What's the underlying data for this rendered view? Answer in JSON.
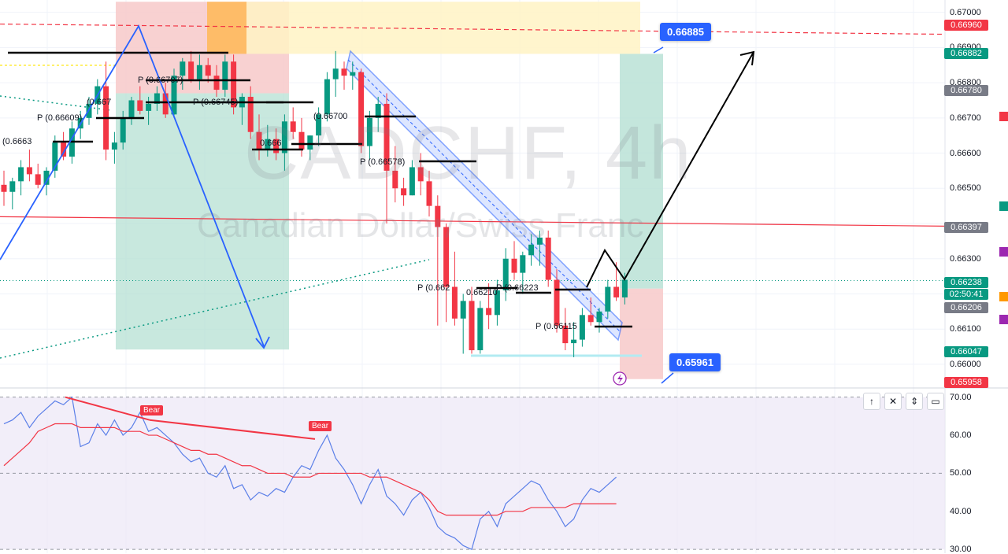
{
  "watermark": {
    "symbol": "CADCHF, 4h",
    "name": "Canadian Dollar/Swiss Franc"
  },
  "callouts": {
    "target": "0.66885",
    "stop": "0.65961"
  },
  "price_axis": {
    "ticks": [
      "0.67000",
      "0.66900",
      "0.66800",
      "0.66700",
      "0.66600",
      "0.66500",
      "0.66300",
      "0.66100",
      "0.66000"
    ],
    "tags": [
      {
        "text": "0.66960",
        "color": "#f23645"
      },
      {
        "text": "0.66882",
        "color": "#089981"
      },
      {
        "text": "0.66780",
        "color": "#787b86"
      },
      {
        "text": "0.66397",
        "color": "#787b86"
      },
      {
        "text": "0.66238",
        "color": "#089981"
      },
      {
        "text": "02:50:41",
        "color": "#089981"
      },
      {
        "text": "0.66206",
        "color": "#787b86"
      },
      {
        "text": "0.66047",
        "color": "#089981"
      },
      {
        "text": "0.65958",
        "color": "#f23645"
      }
    ]
  },
  "rsi_axis": {
    "ticks": [
      "70.00",
      "60.00",
      "50.00",
      "40.00",
      "30.00"
    ]
  },
  "badges": {
    "bear1": "Bear",
    "bear2": "Bear"
  },
  "pivot_labels": [
    {
      "text": "(0.6663"
    },
    {
      "text": "P (0.66609)"
    },
    {
      "text": "(0.667"
    },
    {
      "text": "P (0.66707)"
    },
    {
      "text": "P (0.66745)"
    },
    {
      "text": "(0.66700"
    },
    {
      "text": "0.666"
    },
    {
      "text": "P (0.66578)"
    },
    {
      "text": "P (0.662"
    },
    {
      "text": "0.66210"
    },
    {
      "text": "P (0.66223"
    },
    {
      "text": "P (0.66115"
    }
  ],
  "pane_buttons": [
    "↑",
    "✕",
    "⇕",
    "▭"
  ],
  "chart_data": [
    {
      "type": "candlestick",
      "title": "CADCHF, 4h",
      "subtitle": "Canadian Dollar/Swiss Franc",
      "ylim": [
        0.65935,
        0.67035
      ],
      "levels": {
        "last_price": 0.66238,
        "support_line": 0.66397,
        "target": 0.66885,
        "stop": 0.65961,
        "top_dashed": 0.6696
      },
      "candles": [
        [
          0.6651,
          0.6655,
          0.6645,
          0.6649
        ],
        [
          0.6649,
          0.6653,
          0.6644,
          0.6652
        ],
        [
          0.6652,
          0.6658,
          0.6648,
          0.6656
        ],
        [
          0.6656,
          0.6661,
          0.6652,
          0.6654
        ],
        [
          0.6654,
          0.6657,
          0.665,
          0.6651
        ],
        [
          0.6651,
          0.6656,
          0.6648,
          0.6655
        ],
        [
          0.6655,
          0.6665,
          0.6653,
          0.6663
        ],
        [
          0.6663,
          0.6666,
          0.6658,
          0.6659
        ],
        [
          0.6659,
          0.6669,
          0.6657,
          0.6667
        ],
        [
          0.6667,
          0.6672,
          0.6664,
          0.667
        ],
        [
          0.667,
          0.6676,
          0.6668,
          0.6674
        ],
        [
          0.6674,
          0.6681,
          0.6671,
          0.6679
        ],
        [
          0.6679,
          0.6686,
          0.6658,
          0.6661
        ],
        [
          0.6661,
          0.6666,
          0.6657,
          0.6663
        ],
        [
          0.6663,
          0.6672,
          0.6661,
          0.667
        ],
        [
          0.667,
          0.6676,
          0.6668,
          0.6675
        ],
        [
          0.6675,
          0.6679,
          0.6671,
          0.6672
        ],
        [
          0.6672,
          0.6676,
          0.6668,
          0.6674
        ],
        [
          0.6674,
          0.6679,
          0.6672,
          0.6677
        ],
        [
          0.6677,
          0.668,
          0.667,
          0.6671
        ],
        [
          0.6671,
          0.6684,
          0.667,
          0.6682
        ],
        [
          0.6682,
          0.6687,
          0.6678,
          0.6686
        ],
        [
          0.6686,
          0.6689,
          0.668,
          0.6681
        ],
        [
          0.6681,
          0.6688,
          0.6678,
          0.6685
        ],
        [
          0.6685,
          0.6687,
          0.668,
          0.6682
        ],
        [
          0.6682,
          0.6685,
          0.6676,
          0.6678
        ],
        [
          0.6678,
          0.6688,
          0.6676,
          0.6686
        ],
        [
          0.6686,
          0.6688,
          0.6671,
          0.6673
        ],
        [
          0.6673,
          0.6677,
          0.6668,
          0.6676
        ],
        [
          0.6676,
          0.6679,
          0.6664,
          0.6666
        ],
        [
          0.6666,
          0.6671,
          0.6658,
          0.6661
        ],
        [
          0.6661,
          0.6668,
          0.6659,
          0.6664
        ],
        [
          0.6664,
          0.6667,
          0.6658,
          0.666
        ],
        [
          0.666,
          0.6671,
          0.6655,
          0.6669
        ],
        [
          0.6669,
          0.6673,
          0.6664,
          0.6666
        ],
        [
          0.6666,
          0.667,
          0.6659,
          0.6661
        ],
        [
          0.6661,
          0.6665,
          0.6658,
          0.6665
        ],
        [
          0.6665,
          0.6673,
          0.6662,
          0.6671
        ],
        [
          0.6671,
          0.6683,
          0.6669,
          0.6681
        ],
        [
          0.6681,
          0.6689,
          0.6676,
          0.6684
        ],
        [
          0.6684,
          0.6686,
          0.6678,
          0.6682
        ],
        [
          0.6682,
          0.6686,
          0.6678,
          0.6683
        ],
        [
          0.6683,
          0.6684,
          0.666,
          0.6662
        ],
        [
          0.6662,
          0.6672,
          0.6658,
          0.667
        ],
        [
          0.667,
          0.6676,
          0.6666,
          0.6674
        ],
        [
          0.6674,
          0.6677,
          0.664,
          0.6655
        ],
        [
          0.6655,
          0.6662,
          0.6646,
          0.665
        ],
        [
          0.665,
          0.6653,
          0.6645,
          0.6648
        ],
        [
          0.6648,
          0.6658,
          0.6648,
          0.6656
        ],
        [
          0.6656,
          0.666,
          0.6648,
          0.6652
        ],
        [
          0.6652,
          0.6655,
          0.6642,
          0.6645
        ],
        [
          0.6645,
          0.6648,
          0.6611,
          0.6639
        ],
        [
          0.6639,
          0.664,
          0.6612,
          0.6622
        ],
        [
          0.6622,
          0.6632,
          0.6611,
          0.6613
        ],
        [
          0.6613,
          0.662,
          0.6603,
          0.6618
        ],
        [
          0.6618,
          0.6622,
          0.6603,
          0.6604
        ],
        [
          0.6604,
          0.6618,
          0.6603,
          0.6616
        ],
        [
          0.6616,
          0.6623,
          0.661,
          0.6614
        ],
        [
          0.6614,
          0.6624,
          0.6611,
          0.6621
        ],
        [
          0.6621,
          0.6633,
          0.6618,
          0.663
        ],
        [
          0.663,
          0.6635,
          0.6624,
          0.6626
        ],
        [
          0.6626,
          0.6632,
          0.662,
          0.6631
        ],
        [
          0.6631,
          0.6637,
          0.6628,
          0.6634
        ],
        [
          0.6634,
          0.6638,
          0.6628,
          0.6636
        ],
        [
          0.6636,
          0.6638,
          0.6622,
          0.6624
        ],
        [
          0.6624,
          0.6627,
          0.6609,
          0.6611
        ],
        [
          0.6611,
          0.6616,
          0.6604,
          0.6606
        ],
        [
          0.6606,
          0.6612,
          0.6602,
          0.6607
        ],
        [
          0.6607,
          0.6616,
          0.6605,
          0.6614
        ],
        [
          0.6614,
          0.6619,
          0.6611,
          0.6612
        ],
        [
          0.6612,
          0.6616,
          0.6609,
          0.6615
        ],
        [
          0.6615,
          0.6624,
          0.6613,
          0.6622
        ],
        [
          0.6622,
          0.6629,
          0.6618,
          0.6619
        ],
        [
          0.6619,
          0.6626,
          0.6617,
          0.6624
        ]
      ]
    },
    {
      "type": "line",
      "title": "RSI",
      "ylim": [
        29,
        72
      ],
      "series": [
        {
          "values": [
            63,
            64,
            66,
            62,
            65,
            67,
            69,
            68,
            70,
            57,
            58,
            63,
            60,
            64,
            60,
            62,
            66,
            61,
            62,
            60,
            58,
            55,
            53,
            54,
            50,
            49,
            52,
            46,
            47,
            43,
            45,
            44,
            46,
            45,
            49,
            52,
            51,
            56,
            60,
            54,
            51,
            47,
            42,
            47,
            51,
            44,
            42,
            39,
            43,
            45,
            41,
            36,
            34,
            33,
            31,
            30,
            38,
            40,
            36,
            42,
            44,
            46,
            48,
            47,
            43,
            40,
            36,
            38,
            43,
            46,
            45,
            47,
            49
          ]
        },
        {
          "values": [
            52,
            54,
            56,
            58,
            61,
            62,
            63,
            63,
            63,
            62,
            62,
            62,
            62,
            62,
            61,
            61,
            61,
            60,
            60,
            59,
            58,
            57,
            56,
            56,
            55,
            55,
            54,
            53,
            52,
            52,
            51,
            50,
            50,
            50,
            49,
            49,
            49,
            50,
            50,
            50,
            50,
            50,
            50,
            49,
            49,
            49,
            48,
            47,
            46,
            45,
            43,
            40,
            39,
            39,
            39,
            39,
            39,
            39,
            39,
            40,
            40,
            40,
            41,
            41,
            41,
            41,
            41,
            42,
            42,
            42,
            42,
            42,
            42
          ]
        }
      ]
    }
  ]
}
